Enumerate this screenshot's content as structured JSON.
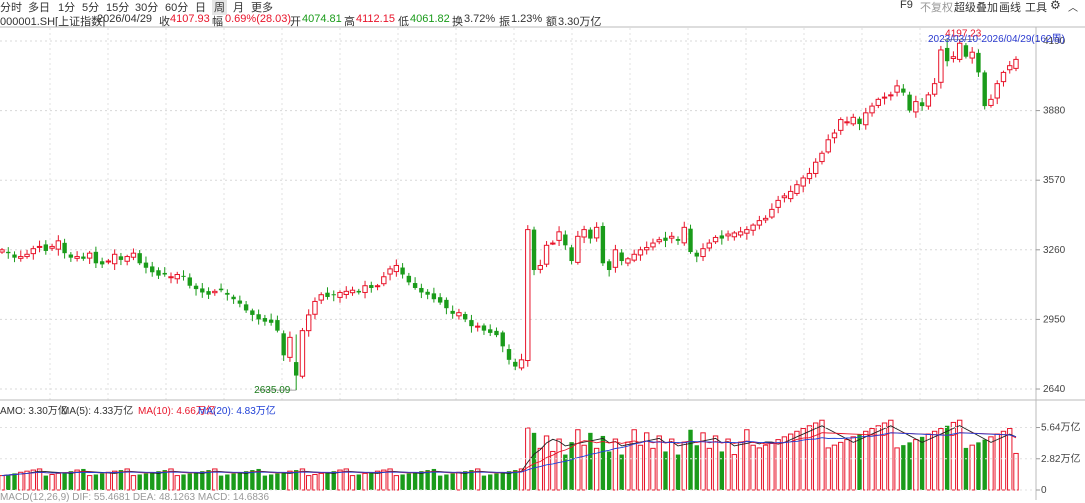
{
  "period_tabs": [
    {
      "label": "分时",
      "active": false
    },
    {
      "label": "多日",
      "active": false
    },
    {
      "label": "1分",
      "active": false
    },
    {
      "label": "5分",
      "active": false
    },
    {
      "label": "15分",
      "active": false
    },
    {
      "label": "30分",
      "active": false
    },
    {
      "label": "60分",
      "active": false
    },
    {
      "label": "日",
      "active": false
    },
    {
      "label": "周",
      "active": true
    },
    {
      "label": "月",
      "active": false
    },
    {
      "label": "更多",
      "active": false
    }
  ],
  "toolbar_right": {
    "f9": "F9",
    "no_adjust": "不复权",
    "overlay": "超级叠加",
    "draw": "画线",
    "tools": "工具"
  },
  "info": {
    "code": "000001.SH[上证指数]",
    "date": "2026/04/29",
    "close_label": "收",
    "close": "4107.93",
    "change_label": "幅",
    "change": "0.69%(28.03)",
    "open_label": "开",
    "open": "4074.81",
    "high_label": "高",
    "high": "4112.15",
    "low_label": "低",
    "low": "4061.82",
    "turnover_label": "换",
    "turnover": "3.72%",
    "amplitude_label": "振",
    "amplitude": "1.23%",
    "amount_label": "额",
    "amount": "3.30万亿"
  },
  "range_label": "2023/03/10-2026/04/29(162周)",
  "price_axis": [
    "4190",
    "3880",
    "3570",
    "3260",
    "2950",
    "2640"
  ],
  "max_label": "4197.23",
  "min_label": "2635.09",
  "volume_info": {
    "amo": "AMO: 3.30万亿",
    "ma5": "MA(5): 4.33万亿",
    "ma10": "MA(10): 4.66万亿",
    "ma20": "MA(20): 4.83万亿"
  },
  "volume_axis": [
    "5.64万亿",
    "2.82万亿",
    "0"
  ],
  "bottom_text": "MACD(12,26,9) DIF: 55.4681  DEA: 48.1263  MACD: 14.6836",
  "colors": {
    "up": "#e8142a",
    "down": "#1a9b1a",
    "ma5": "#222222",
    "ma10": "#e8142a",
    "ma20": "#1f3fd6"
  },
  "chart_data": {
    "type": "candlestick",
    "price_range": [
      2600,
      4230
    ],
    "volume_range": [
      0,
      6.5
    ],
    "candles": []
  }
}
